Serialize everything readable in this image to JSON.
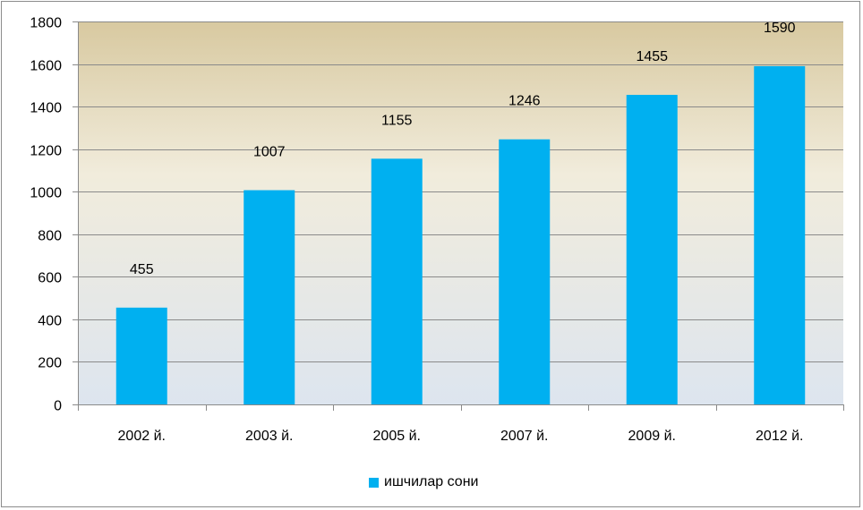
{
  "chart_data": {
    "type": "bar",
    "categories": [
      "2002 й.",
      "2003 й.",
      "2005 й.",
      "2007 й.",
      "2009 й.",
      "2012 й."
    ],
    "series": [
      {
        "name": "ишчилар сони",
        "values": [
          455,
          1007,
          1155,
          1246,
          1455,
          1590
        ],
        "color": "#00b0f0"
      }
    ],
    "data_labels": [
      "455",
      "1007",
      "1155",
      "1246",
      "1455",
      "1590"
    ],
    "ylim": [
      0,
      1800
    ],
    "yticks": [
      0,
      200,
      400,
      600,
      800,
      1000,
      1200,
      1400,
      1600,
      1800
    ],
    "ytick_labels": [
      "0",
      "200",
      "400",
      "600",
      "800",
      "1000",
      "1200",
      "1400",
      "1600",
      "1800"
    ],
    "grid": true,
    "legend_position": "bottom",
    "plot_background": "gradient tan-to-light-blue",
    "title": "",
    "xlabel": "",
    "ylabel": ""
  }
}
